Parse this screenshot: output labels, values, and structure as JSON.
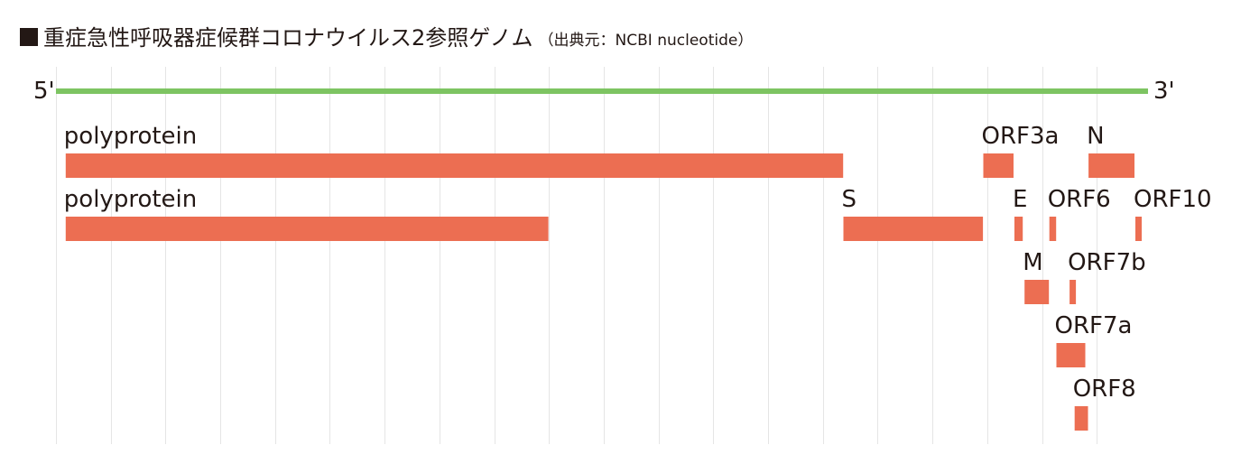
{
  "title": {
    "main": "重症急性呼吸器症候群コロナウイルス2参照ゲノム",
    "source": "（出典元：NCBI nucleotide）"
  },
  "genome": {
    "five_prime_label": "5'",
    "three_prime_label": "3'",
    "length_bp": 29903,
    "grid_interval_bp": 1500,
    "grid_on": true,
    "colors": {
      "strand": "#7dc462",
      "gene": "#ec6e52",
      "grid": "#e5e5e5",
      "text": "#231815"
    },
    "genes": [
      {
        "name": "polyprotein",
        "start": 266,
        "end": 21555,
        "row": 1,
        "label_align": "start"
      },
      {
        "name": "ORF3a",
        "start": 25393,
        "end": 26220,
        "row": 1,
        "label_align": "start"
      },
      {
        "name": "N",
        "start": 28274,
        "end": 29533,
        "row": 1,
        "label_align": "start"
      },
      {
        "name": "polyprotein",
        "start": 266,
        "end": 13483,
        "row": 2,
        "label_align": "start"
      },
      {
        "name": "S",
        "start": 21563,
        "end": 25384,
        "row": 2,
        "label_align": "start"
      },
      {
        "name": "E",
        "start": 26245,
        "end": 26472,
        "row": 2,
        "label_align": "start"
      },
      {
        "name": "ORF6",
        "start": 27202,
        "end": 27387,
        "row": 2,
        "label_align": "start"
      },
      {
        "name": "ORF10",
        "start": 29558,
        "end": 29674,
        "row": 2,
        "label_align": "start"
      },
      {
        "name": "M",
        "start": 26523,
        "end": 27191,
        "row": 3,
        "label_align": "start"
      },
      {
        "name": "ORF7b",
        "start": 27756,
        "end": 27887,
        "row": 3,
        "label_align": "start"
      },
      {
        "name": "ORF7a",
        "start": 27394,
        "end": 28185,
        "row": 4,
        "label_align": "start"
      },
      {
        "name": "ORF8",
        "start": 27894,
        "end": 28259,
        "row": 5,
        "label_align": "start"
      }
    ]
  }
}
